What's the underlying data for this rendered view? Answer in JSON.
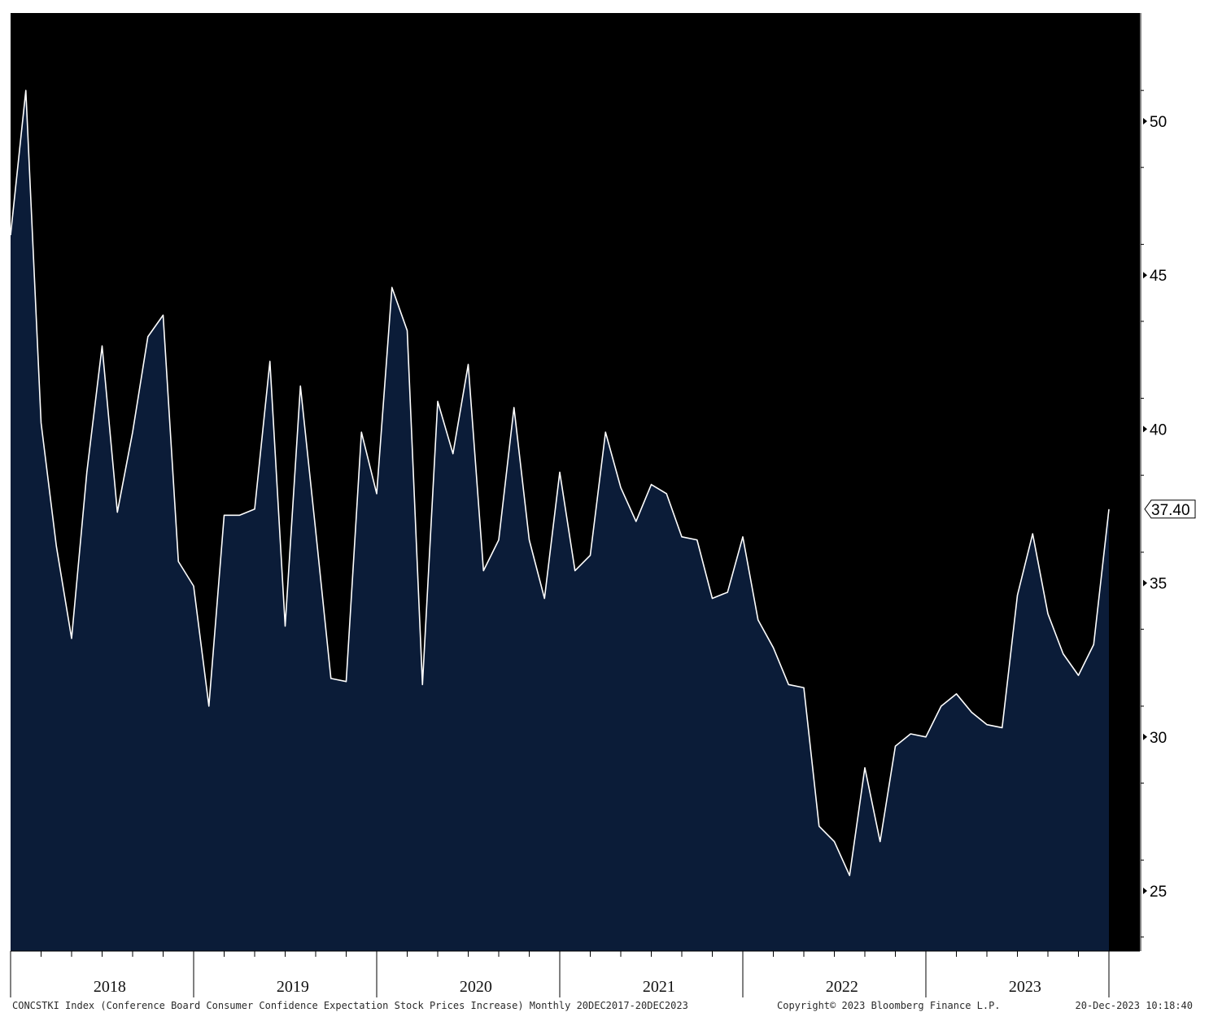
{
  "chart_data": {
    "type": "area",
    "frequency": "Monthly",
    "colors": {
      "plot_background": "#000000",
      "area_fill": "#0b1c38",
      "line": "#ffffff",
      "axis": "#000000",
      "last_label_bg": "#ffffff"
    },
    "ylim": [
      23,
      53
    ],
    "yticks": [
      25,
      30,
      35,
      40,
      45,
      50
    ],
    "ytick_labels": [
      "25",
      "30",
      "35",
      "40",
      "45",
      "50"
    ],
    "year_labels": [
      "2018",
      "2019",
      "2020",
      "2021",
      "2022",
      "2023"
    ],
    "last_value_label": "37.40",
    "x": [
      "2017-12",
      "2018-01",
      "2018-02",
      "2018-03",
      "2018-04",
      "2018-05",
      "2018-06",
      "2018-07",
      "2018-08",
      "2018-09",
      "2018-10",
      "2018-11",
      "2018-12",
      "2019-01",
      "2019-02",
      "2019-03",
      "2019-04",
      "2019-05",
      "2019-06",
      "2019-07",
      "2019-08",
      "2019-09",
      "2019-10",
      "2019-11",
      "2019-12",
      "2020-01",
      "2020-02",
      "2020-03",
      "2020-04",
      "2020-05",
      "2020-06",
      "2020-07",
      "2020-08",
      "2020-09",
      "2020-10",
      "2020-11",
      "2020-12",
      "2021-01",
      "2021-02",
      "2021-03",
      "2021-04",
      "2021-05",
      "2021-06",
      "2021-07",
      "2021-08",
      "2021-09",
      "2021-10",
      "2021-11",
      "2021-12",
      "2022-01",
      "2022-02",
      "2022-03",
      "2022-04",
      "2022-05",
      "2022-06",
      "2022-07",
      "2022-08",
      "2022-09",
      "2022-10",
      "2022-11",
      "2022-12",
      "2023-01",
      "2023-02",
      "2023-03",
      "2023-04",
      "2023-05",
      "2023-06",
      "2023-07",
      "2023-08",
      "2023-09",
      "2023-10",
      "2023-11",
      "2023-12"
    ],
    "series": [
      {
        "values": [
          46.3,
          51.0,
          40.2,
          36.2,
          33.2,
          38.6,
          42.7,
          37.3,
          39.9,
          43.0,
          43.7,
          35.7,
          34.9,
          31.0,
          37.2,
          37.2,
          37.4,
          42.2,
          33.6,
          41.4,
          36.7,
          31.9,
          31.8,
          39.9,
          37.9,
          44.6,
          43.2,
          31.7,
          40.9,
          39.2,
          42.1,
          35.4,
          36.4,
          40.7,
          36.4,
          34.5,
          38.6,
          35.4,
          35.9,
          39.9,
          38.1,
          37.0,
          38.2,
          37.9,
          36.5,
          36.4,
          34.5,
          34.7,
          36.5,
          33.8,
          32.9,
          31.7,
          31.6,
          27.1,
          26.6,
          25.5,
          29.0,
          26.6,
          29.7,
          30.1,
          30.0,
          31.0,
          31.4,
          30.8,
          30.4,
          30.3,
          34.6,
          36.6,
          34.0,
          32.7,
          32.0,
          33.0,
          37.4
        ]
      }
    ]
  },
  "footer": {
    "left": "CONCSTKI Index (Conference Board Consumer Confidence Expectation Stock Prices Increase)  Monthly 20DEC2017-20DEC2023",
    "middle": "Copyright© 2023 Bloomberg Finance L.P.",
    "right": "20-Dec-2023 10:18:40"
  }
}
